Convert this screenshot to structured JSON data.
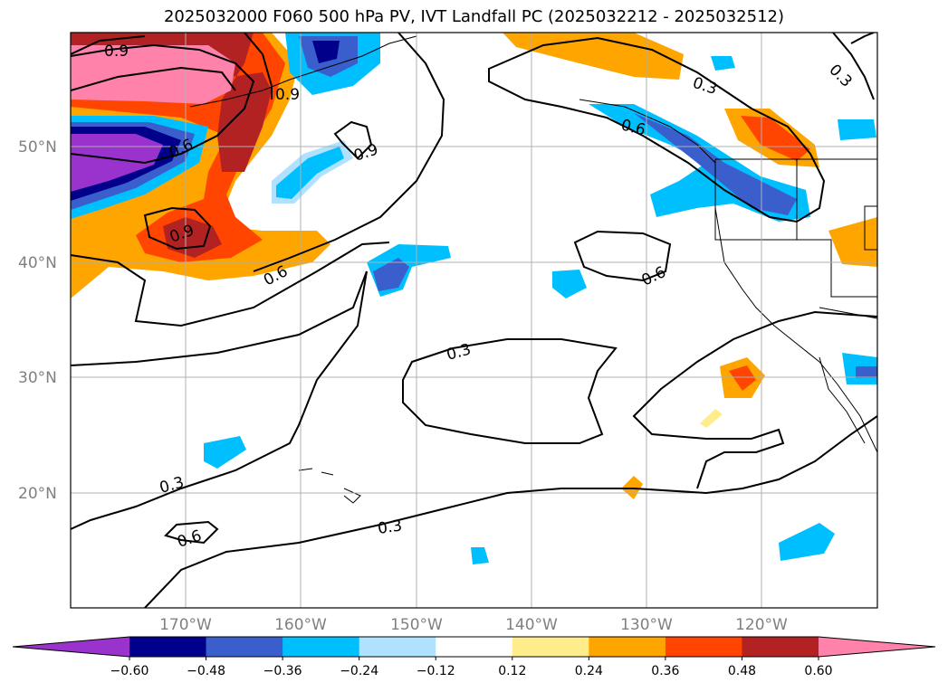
{
  "title": "2025032000 F060 500 hPa PV, IVT Landfall PC (2025032212 - 2025032512)",
  "lat_labels": [
    "50°N",
    "40°N",
    "30°N",
    "20°N"
  ],
  "lon_labels": [
    "170°W",
    "160°W",
    "150°W",
    "140°W",
    "130°W",
    "120°W"
  ],
  "contour_labels": [
    "0.9",
    "0.9",
    "0.9",
    "0.9",
    "0.6",
    "0.6",
    "0.6",
    "0.6",
    "0.6",
    "0.3",
    "0.3",
    "0.3",
    "0.3",
    "0.6",
    "0.3"
  ],
  "colorbar": {
    "ticks": [
      "−0.60",
      "−0.48",
      "−0.36",
      "−0.24",
      "−0.12",
      "0.12",
      "0.24",
      "0.36",
      "0.48",
      "0.60"
    ],
    "colors": [
      "#9a32cd",
      "#00008b",
      "#3a5fcd",
      "#00bfff",
      "#b0e2ff",
      "#ffffff",
      "#ffec8b",
      "#ffa500",
      "#ff4500",
      "#b22222",
      "#ff82ab"
    ]
  }
}
